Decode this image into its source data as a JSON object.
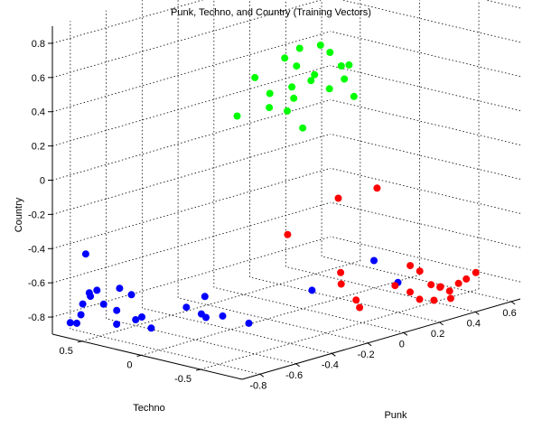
{
  "chart_data": {
    "type": "scatter",
    "title": "Punk, Techno, and Country (Training Vectors)",
    "xlabel": "Punk",
    "ylabel": "Techno",
    "zlabel": "Country",
    "grid": true,
    "x_ticks": [
      "-0.8",
      "-0.6",
      "-0.4",
      "-0.2",
      "0",
      "0.2",
      "0.4",
      "0.6"
    ],
    "y_ticks": [
      "0.5",
      "0",
      "-0.5"
    ],
    "z_ticks": [
      "0.8",
      "0.6",
      "0.4",
      "0.2",
      "0",
      "-0.2",
      "-0.4",
      "-0.6",
      "-0.8"
    ],
    "series": [
      {
        "color": "#0000ff",
        "points": [
          {
            "x": -0.86,
            "y": 0.66,
            "z": -0.83
          },
          {
            "x": -0.85,
            "y": 0.62,
            "z": -0.83
          },
          {
            "x": -0.84,
            "y": 0.6,
            "z": -0.78
          },
          {
            "x": -0.83,
            "y": 0.6,
            "z": -0.72
          },
          {
            "x": -0.84,
            "y": 0.53,
            "z": -0.64
          },
          {
            "x": -0.83,
            "y": 0.48,
            "z": -0.62
          },
          {
            "x": -0.82,
            "y": 0.55,
            "z": -0.67
          },
          {
            "x": -0.8,
            "y": 0.62,
            "z": -0.44
          },
          {
            "x": -0.78,
            "y": 0.5,
            "z": -0.72
          },
          {
            "x": -0.76,
            "y": 0.42,
            "z": -0.83
          },
          {
            "x": -0.77,
            "y": 0.38,
            "z": -0.61
          },
          {
            "x": -0.74,
            "y": 0.45,
            "z": -0.76
          },
          {
            "x": -0.7,
            "y": 0.35,
            "z": -0.81
          },
          {
            "x": -0.66,
            "y": 0.28,
            "z": -0.86
          },
          {
            "x": -0.79,
            "y": 0.25,
            "z": -0.62
          },
          {
            "x": -0.55,
            "y": 0.15,
            "z": -0.75
          },
          {
            "x": -0.5,
            "y": 0.06,
            "z": -0.81
          },
          {
            "x": -0.46,
            "y": -0.02,
            "z": -0.8
          },
          {
            "x": -0.48,
            "y": 0.1,
            "z": -0.7
          },
          {
            "x": -0.38,
            "y": -0.12,
            "z": -0.85
          },
          {
            "x": -0.42,
            "y": 0.22,
            "z": -0.84
          },
          {
            "x": -0.18,
            "y": -0.35,
            "z": -0.68
          },
          {
            "x": 0.1,
            "y": -0.65,
            "z": -0.67
          },
          {
            "x": -0.62,
            "y": 0.42,
            "z": -0.83
          },
          {
            "x": 0.0,
            "y": -0.6,
            "z": -0.52
          }
        ]
      },
      {
        "color": "#00ff00",
        "points": [
          {
            "x": -0.3,
            "y": -0.05,
            "z": 0.55
          },
          {
            "x": -0.2,
            "y": -0.15,
            "z": 0.65
          },
          {
            "x": -0.15,
            "y": -0.2,
            "z": 0.7
          },
          {
            "x": -0.1,
            "y": -0.3,
            "z": 0.72
          },
          {
            "x": -0.08,
            "y": -0.35,
            "z": 0.68
          },
          {
            "x": -0.05,
            "y": -0.4,
            "z": 0.6
          },
          {
            "x": -0.12,
            "y": -0.28,
            "z": 0.55
          },
          {
            "x": -0.18,
            "y": -0.18,
            "z": 0.48
          },
          {
            "x": -0.25,
            "y": -0.1,
            "z": 0.45
          },
          {
            "x": -0.22,
            "y": -0.05,
            "z": 0.35
          },
          {
            "x": -0.15,
            "y": -0.15,
            "z": 0.4
          },
          {
            "x": -0.1,
            "y": -0.22,
            "z": 0.5
          },
          {
            "x": -0.05,
            "y": -0.3,
            "z": 0.45
          },
          {
            "x": 0.0,
            "y": -0.35,
            "z": 0.5
          },
          {
            "x": 0.02,
            "y": -0.4,
            "z": 0.4
          },
          {
            "x": -0.3,
            "y": 0.1,
            "z": 0.3
          },
          {
            "x": -0.12,
            "y": -0.05,
            "z": 0.3
          },
          {
            "x": -0.08,
            "y": -0.12,
            "z": 0.2
          },
          {
            "x": -0.2,
            "y": -0.25,
            "z": 0.62
          },
          {
            "x": -0.02,
            "y": -0.42,
            "z": 0.6
          }
        ]
      },
      {
        "color": "#ff0000",
        "points": [
          {
            "x": -0.1,
            "y": -0.45,
            "z": -0.15
          },
          {
            "x": 0.05,
            "y": -0.55,
            "z": -0.12
          },
          {
            "x": -0.25,
            "y": -0.25,
            "z": -0.35
          },
          {
            "x": -0.15,
            "y": -0.55,
            "z": -0.62
          },
          {
            "x": -0.12,
            "y": -0.5,
            "z": -0.57
          },
          {
            "x": -0.1,
            "y": -0.6,
            "z": -0.72
          },
          {
            "x": -0.08,
            "y": -0.6,
            "z": -0.77
          },
          {
            "x": 0.15,
            "y": -0.55,
            "z": -0.72
          },
          {
            "x": 0.3,
            "y": -0.45,
            "z": -0.82
          },
          {
            "x": 0.32,
            "y": -0.5,
            "z": -0.86
          },
          {
            "x": 0.4,
            "y": -0.3,
            "z": -0.72
          },
          {
            "x": 0.42,
            "y": -0.35,
            "z": -0.75
          },
          {
            "x": 0.45,
            "y": -0.4,
            "z": -0.83
          },
          {
            "x": 0.47,
            "y": -0.45,
            "z": -0.84
          },
          {
            "x": 0.5,
            "y": -0.4,
            "z": -0.86
          },
          {
            "x": 0.52,
            "y": -0.45,
            "z": -0.88
          },
          {
            "x": 0.55,
            "y": -0.48,
            "z": -0.84
          },
          {
            "x": 0.58,
            "y": -0.5,
            "z": -0.82
          },
          {
            "x": 0.6,
            "y": -0.55,
            "z": -0.78
          },
          {
            "x": 0.48,
            "y": -0.52,
            "z": -0.9
          },
          {
            "x": 0.4,
            "y": -0.5,
            "z": -0.89
          }
        ]
      }
    ]
  }
}
